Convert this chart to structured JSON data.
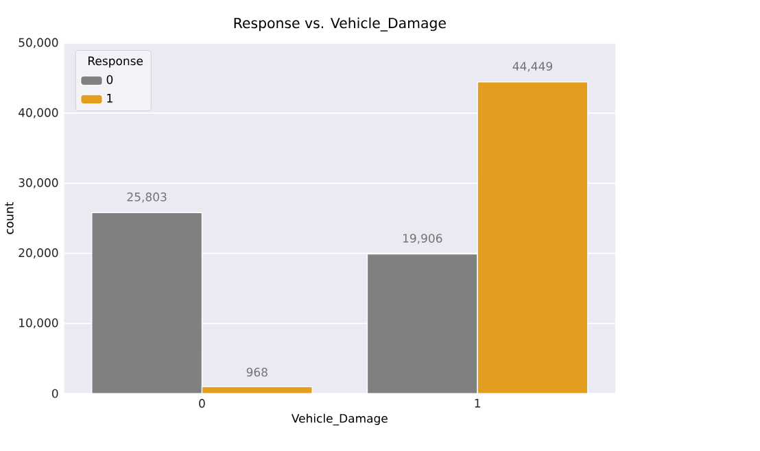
{
  "chart_data": {
    "type": "bar",
    "title": "Response vs. Vehicle_Damage",
    "xlabel": "Vehicle_Damage",
    "ylabel": "count",
    "legend_title": "Response",
    "categories": [
      "0",
      "1"
    ],
    "series": [
      {
        "name": "0",
        "color": "#808080",
        "values": [
          25803,
          19906
        ],
        "value_labels": [
          "25,803",
          "19,906"
        ]
      },
      {
        "name": "1",
        "color": "#e39d1f",
        "values": [
          968,
          44449
        ],
        "value_labels": [
          "968",
          "44,449"
        ]
      }
    ],
    "ylim": [
      0,
      50000
    ],
    "yticks": [
      {
        "value": 0,
        "label": "0"
      },
      {
        "value": 10000,
        "label": "10,000"
      },
      {
        "value": 20000,
        "label": "20,000"
      },
      {
        "value": 30000,
        "label": "30,000"
      },
      {
        "value": 40000,
        "label": "40,000"
      },
      {
        "value": 50000,
        "label": "50,000"
      }
    ],
    "grid": "y",
    "legend": "top left"
  }
}
